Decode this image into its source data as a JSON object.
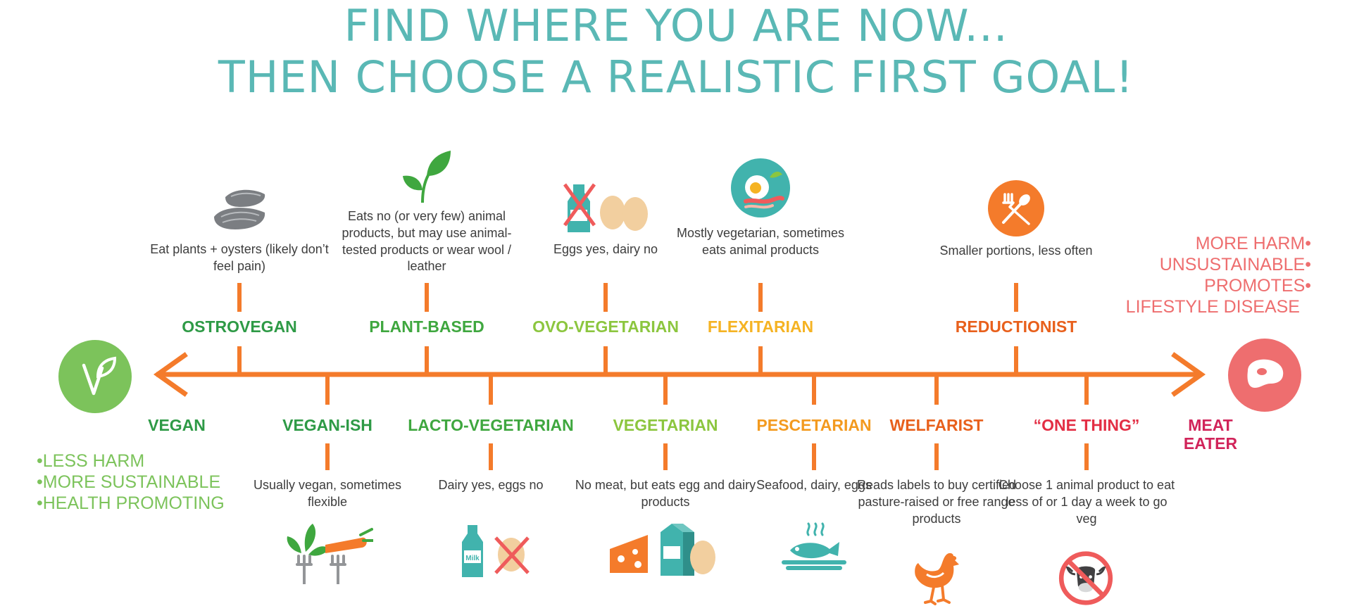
{
  "title": {
    "line1": "FIND WHERE YOU ARE NOW...",
    "line2": "THEN CHOOSE A REALISTIC FIRST GOAL!"
  },
  "colors": {
    "title": "#5ab8b5",
    "axis": "#f47b2b",
    "vegan": "#7cc35b",
    "meat": "#ee6e6f",
    "text": "#3d3d3d",
    "dark_green": "#2e9a46",
    "light_green": "#8cc63f",
    "yellow": "#f5b323",
    "orange": "#f39a1f",
    "deep_orange": "#e8601c",
    "red": "#e32e44",
    "magenta": "#d1245a",
    "icon_gray": "#7b7e82",
    "teal": "#41b3ad"
  },
  "ends": {
    "left": {
      "label": "VEGAN",
      "icon": "vegan-leaf-icon"
    },
    "right": {
      "label_line1": "MEAT",
      "label_line2": "EATER",
      "icon": "steak-icon"
    }
  },
  "left_bullets": [
    "•LESS HARM",
    "•MORE SUSTAINABLE",
    "•HEALTH PROMOTING"
  ],
  "right_bullets": [
    "MORE HARM•",
    "UNSUSTAINABLE•",
    "PROMOTES•",
    "LIFESTYLE DISEASE"
  ],
  "top_categories": [
    {
      "label": "OSTROVEGAN",
      "desc": "Eat plants + oysters (likely don’t feel pain)",
      "color": "#2e9a46",
      "icon": "oyster-icon"
    },
    {
      "label": "PLANT-BASED",
      "desc": "Eats no (or very few) animal products, but may use animal-tested products or wear wool / leather",
      "color": "#3fa73f",
      "icon": "leaf-sprout-icon"
    },
    {
      "label": "OVO-VEGETARIAN",
      "desc": "Eggs yes, dairy no",
      "color": "#8cc63f",
      "icon": "eggs-no-milk-icon"
    },
    {
      "label": "FLEXITARIAN",
      "desc": "Mostly vegetarian, sometimes eats animal products",
      "color": "#f5b323",
      "icon": "breakfast-plate-icon"
    },
    {
      "label": "REDUCTIONIST",
      "desc": "Smaller portions, less often",
      "color": "#e8601c",
      "icon": "fork-spoon-icon"
    }
  ],
  "bottom_categories": [
    {
      "label": "VEGAN-ISH",
      "desc": "Usually vegan, sometimes flexible",
      "color": "#2e9a46",
      "icon": "veggie-forks-icon"
    },
    {
      "label": "LACTO-VEGETARIAN",
      "desc": "Dairy yes, eggs no",
      "color": "#3fa73f",
      "icon": "milk-no-egg-icon",
      "icon_text": "Milk"
    },
    {
      "label": "VEGETARIAN",
      "desc": "No meat, but eats egg and dairy products",
      "color": "#8cc63f",
      "icon": "cheese-milk-egg-icon"
    },
    {
      "label": "PESCETARIAN",
      "desc": "Seafood, dairy, eggs",
      "color": "#f39a1f",
      "icon": "fish-plate-icon"
    },
    {
      "label": "WELFARIST",
      "desc": "Reads labels to buy certified pasture-raised or free range products",
      "color": "#e8601c",
      "icon": "chicken-icon"
    },
    {
      "label": "“ONE THING”",
      "desc": "Choose 1 animal product to eat less of or 1 day a week to go veg",
      "color": "#e32e44",
      "icon": "no-cow-icon"
    }
  ]
}
